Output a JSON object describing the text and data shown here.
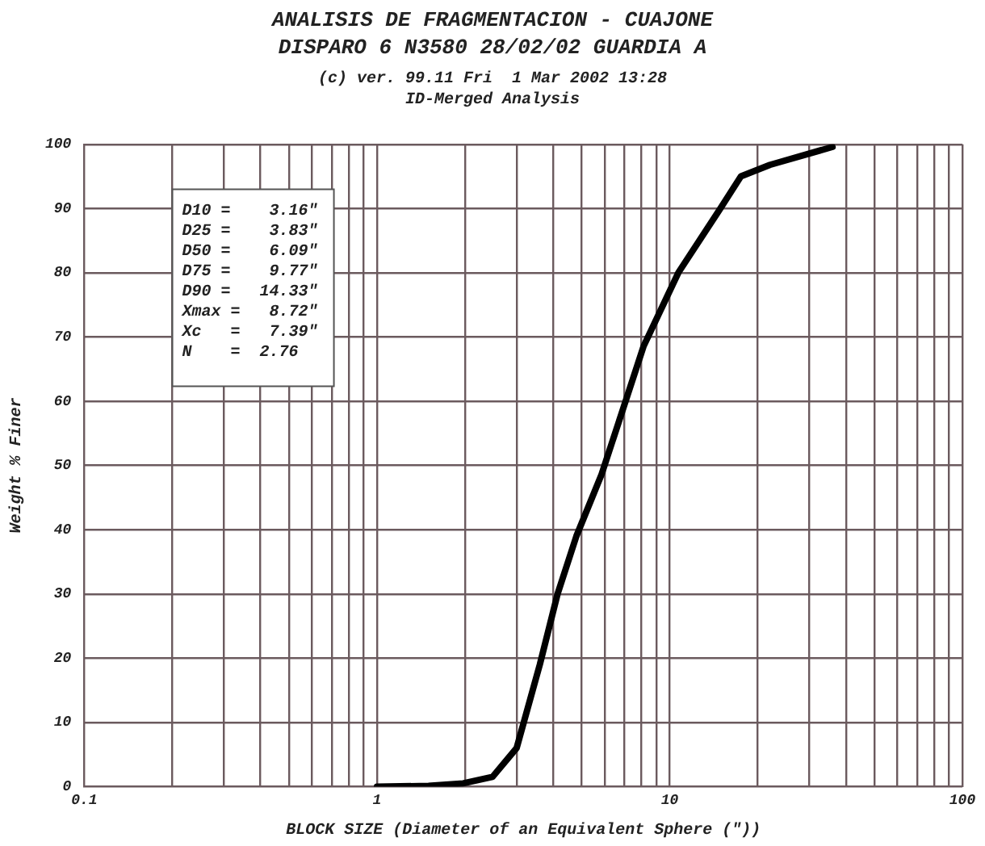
{
  "chart_data": {
    "type": "line",
    "title": "ANALISIS DE FRAGMENTACION - CUAJONE",
    "subtitle": "DISPARO 6 N3580 28/02/02 GUARDIA A",
    "xlabel": "BLOCK SIZE (Diameter of an Equivalent Sphere (\"))",
    "ylabel": "Weight % Finer",
    "annotations": [
      "(c) ver. 99.11 Fri  1 Mar 2002 13:28",
      "ID-Merged Analysis",
      "D10 =    3.16\"",
      "D25 =    3.83\"",
      "D50 =    6.09\"",
      "D75 =    9.77\"",
      "D90 =   14.33\"",
      "Xmax =   8.72\"",
      "Xc   =   7.39\"",
      "N    =  2.76"
    ],
    "log": "x",
    "grid": true,
    "legend": false,
    "marker": "none",
    "line_style": "solid",
    "xlim": [
      0.1,
      100
    ],
    "ylim": [
      0,
      100
    ],
    "xticks": [
      0.1,
      {
        "value": 0.2,
        "label": null
      },
      {
        "value": 0.3,
        "label": null
      },
      {
        "value": 0.4,
        "label": null
      },
      {
        "value": 0.5,
        "label": null
      },
      {
        "value": 0.6,
        "label": null
      },
      {
        "value": 0.7,
        "label": null
      },
      {
        "value": 0.8,
        "label": null
      },
      {
        "value": 0.9,
        "label": null
      },
      1,
      {
        "value": 2,
        "label": null
      },
      {
        "value": 3,
        "label": null
      },
      {
        "value": 4,
        "label": null
      },
      {
        "value": 5,
        "label": null
      },
      {
        "value": 6,
        "label": null
      },
      {
        "value": 7,
        "label": null
      },
      {
        "value": 8,
        "label": null
      },
      {
        "value": 9,
        "label": null
      },
      10,
      {
        "value": 20,
        "label": null
      },
      {
        "value": 30,
        "label": null
      },
      {
        "value": 40,
        "label": null
      },
      {
        "value": 50,
        "label": null
      },
      {
        "value": 60,
        "label": null
      },
      {
        "value": 70,
        "label": null
      },
      {
        "value": 80,
        "label": null
      },
      {
        "value": 90,
        "label": null
      },
      100
    ],
    "yticks": [
      0,
      10,
      20,
      30,
      40,
      50,
      60,
      70,
      80,
      90,
      100
    ],
    "x": [
      1,
      1.5,
      1.97,
      2.48,
      3.0,
      3.6,
      4.14,
      4.8,
      5.85,
      8.15,
      10.7,
      14.7,
      17.5,
      22,
      36
    ],
    "series": [
      {
        "color": "#000000",
        "values": [
          0,
          0.1,
          0.5,
          1.5,
          6,
          19,
          30,
          39,
          48.6,
          68.6,
          80,
          89.6,
          95,
          96.8,
          99.6
        ]
      }
    ]
  }
}
